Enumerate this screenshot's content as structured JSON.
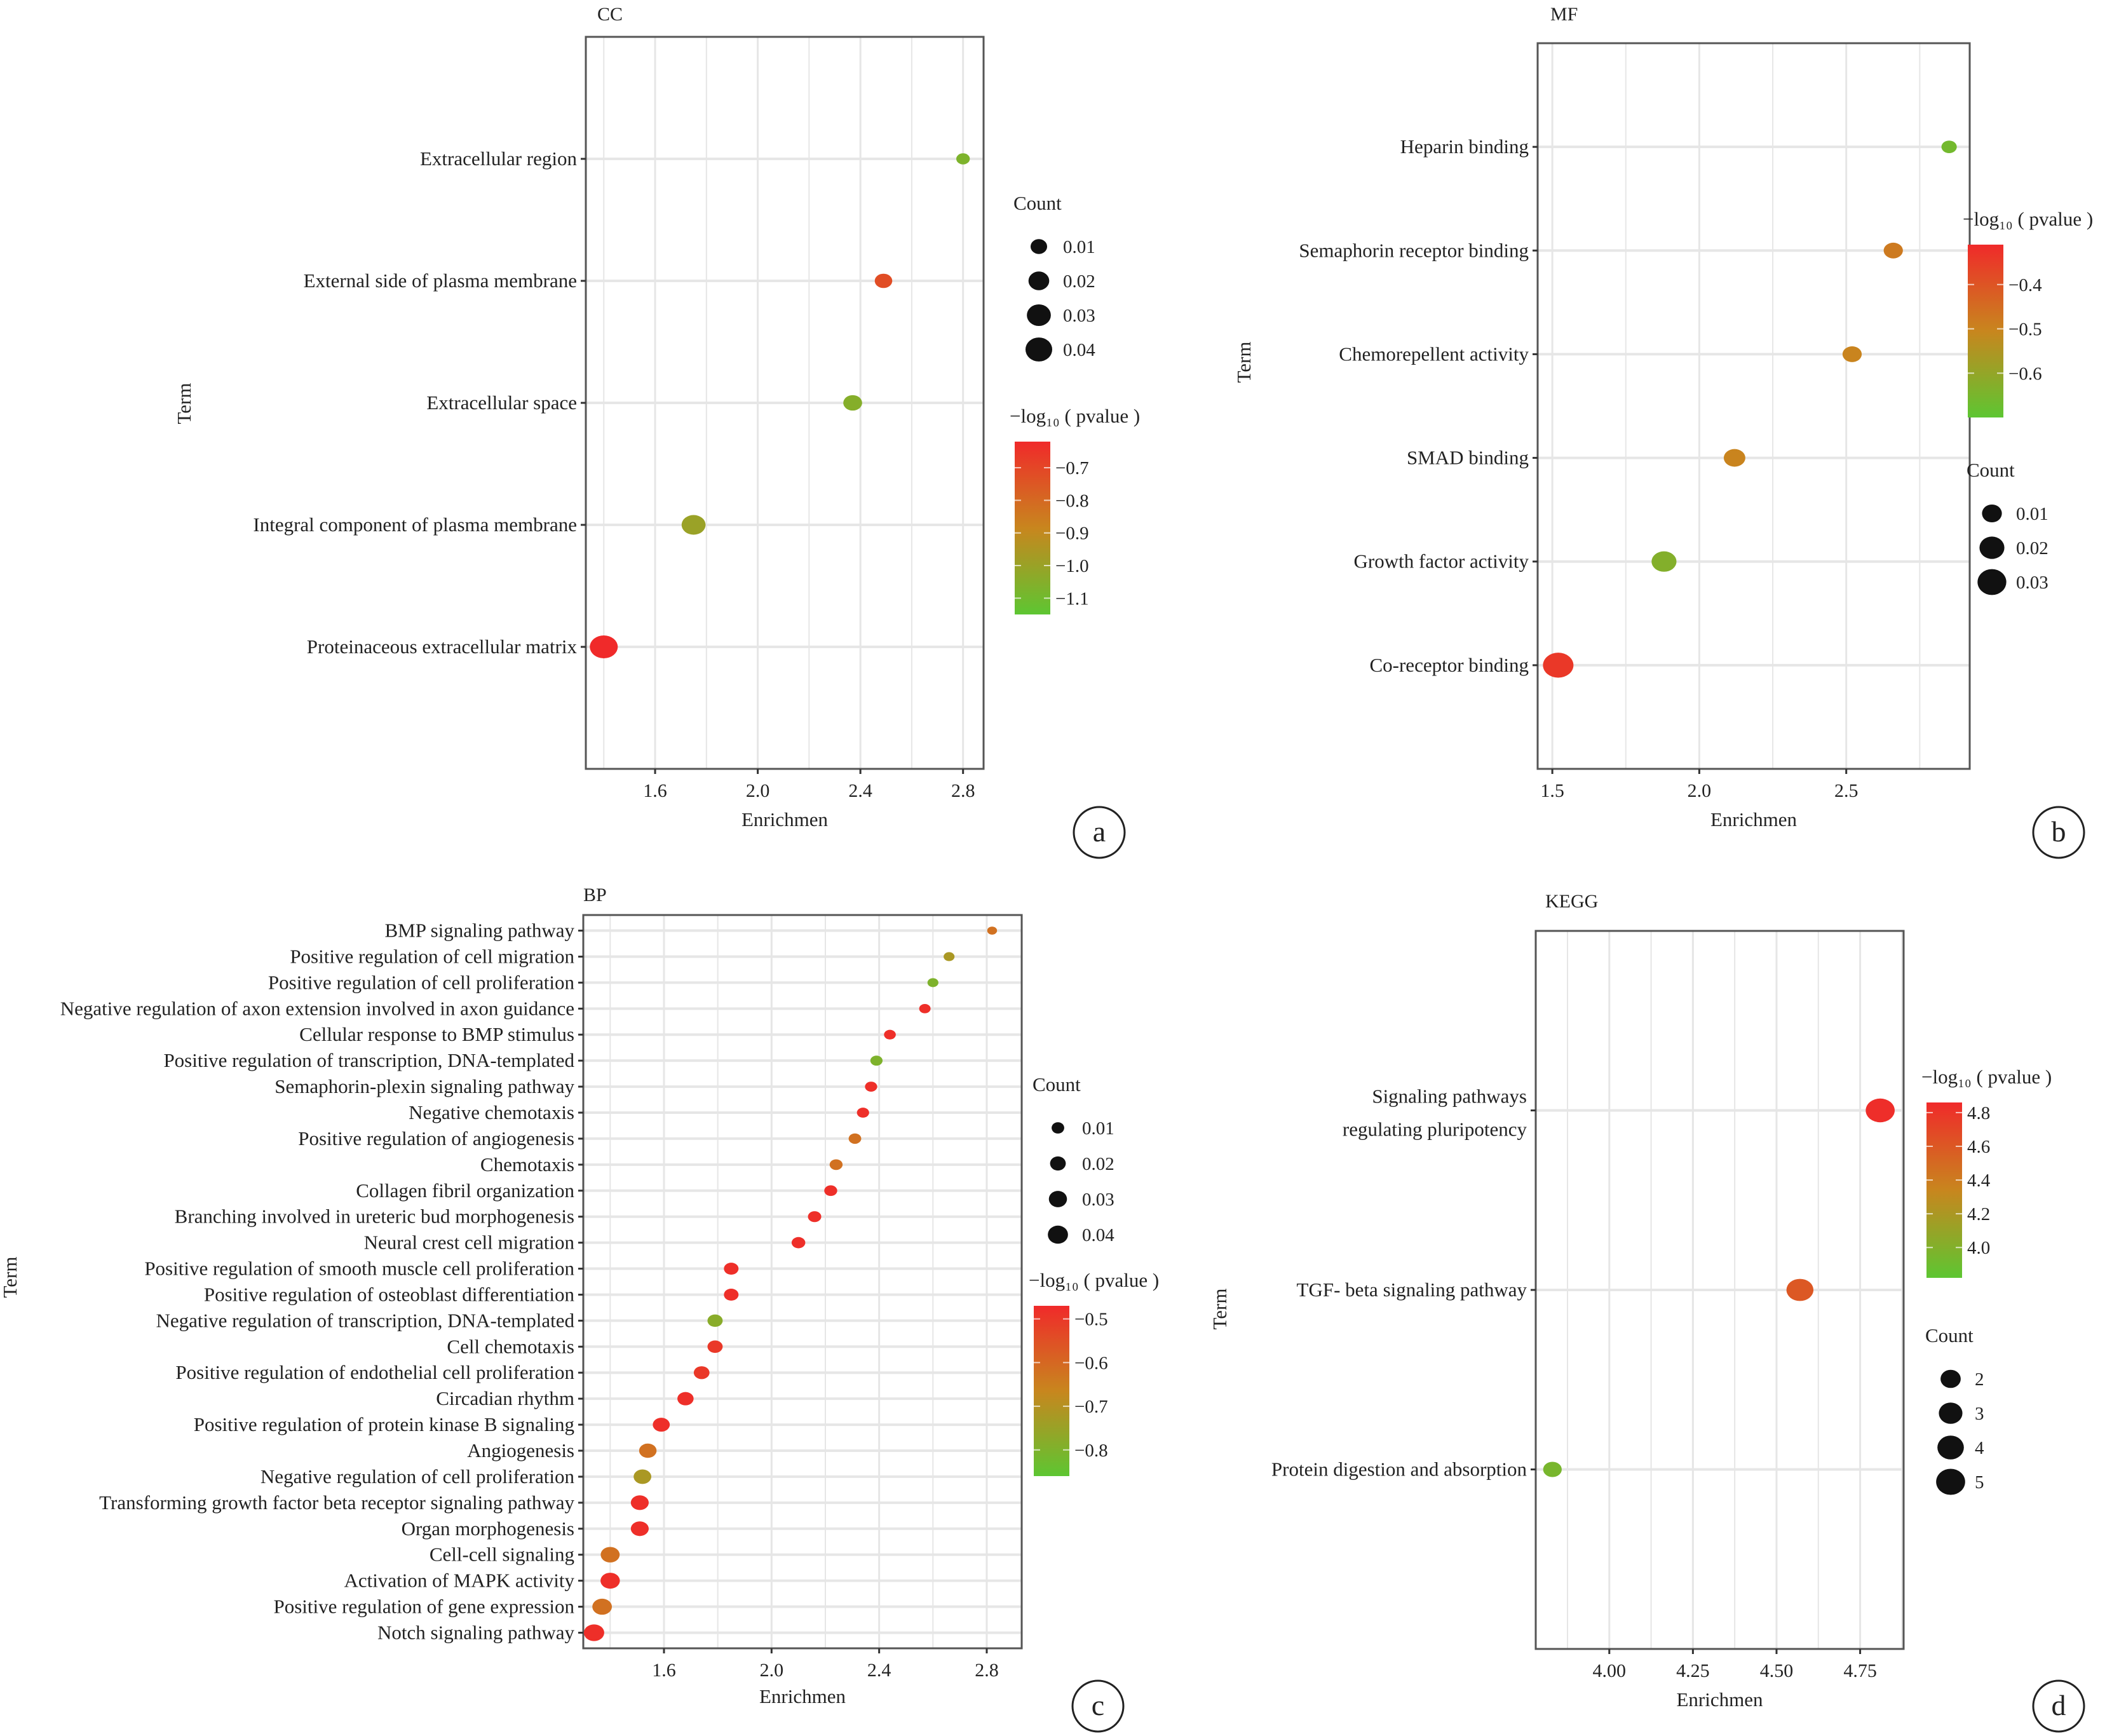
{
  "figure": {
    "panels": [
      "a",
      "b",
      "c",
      "d"
    ]
  },
  "chart_data": [
    {
      "id": "a",
      "type": "scatter",
      "title": "CC",
      "xlabel": "Enrichmen",
      "ylabel": "Term",
      "panel_label": "a",
      "xlim": [
        1.33,
        2.88
      ],
      "xticks": [
        1.6,
        2.0,
        2.4,
        2.8
      ],
      "xtick_labels": [
        "1.6",
        "2.0",
        "2.4",
        "2.8"
      ],
      "grid": true,
      "terms": [
        "Extracellular region",
        "External side of plasma membrane",
        "Extracellular space",
        "Integral component of plasma membrane",
        "Proteinaceous extracellular matrix"
      ],
      "enrichment": [
        2.8,
        2.49,
        2.37,
        1.75,
        1.4
      ],
      "size_value": [
        0.005,
        0.012,
        0.015,
        0.03,
        0.045
      ],
      "color_value": [
        -1.07,
        -0.72,
        -1.05,
        -1.0,
        -0.62
      ],
      "size_legend": {
        "title": "Count",
        "values": [
          0.01,
          0.02,
          0.03,
          0.04
        ],
        "labels": [
          "0.01",
          "0.02",
          "0.03",
          "0.04"
        ],
        "max": 0.045
      },
      "color_legend": {
        "title": "−log₁₀ ( pvalue )",
        "range": [
          -1.15,
          -0.62
        ],
        "ticks": [
          -0.7,
          -0.8,
          -0.9,
          -1.0,
          -1.1
        ],
        "tick_labels": [
          "−0.7",
          "−0.8",
          "−0.9",
          "−1.0",
          "−1.1"
        ],
        "order": "count-first"
      }
    },
    {
      "id": "b",
      "type": "scatter",
      "title": "MF",
      "xlabel": "Enrichmen",
      "ylabel": "Term",
      "panel_label": "b",
      "xlim": [
        1.45,
        2.92
      ],
      "xticks": [
        1.5,
        2.0,
        2.5
      ],
      "xtick_labels": [
        "1.5",
        "2.0",
        "2.5"
      ],
      "grid": true,
      "terms": [
        "Heparin binding",
        "Semaphorin receptor binding",
        "Chemorepellent activity",
        "SMAD binding",
        "Growth factor activity",
        "Co-receptor binding"
      ],
      "enrichment": [
        2.85,
        2.66,
        2.52,
        2.12,
        1.88,
        1.52
      ],
      "size_value": [
        0.004,
        0.009,
        0.009,
        0.013,
        0.02,
        0.035
      ],
      "color_value": [
        -0.66,
        -0.48,
        -0.5,
        -0.5,
        -0.63,
        -0.34
      ],
      "size_legend": {
        "title": "Count",
        "values": [
          0.01,
          0.02,
          0.03
        ],
        "labels": [
          "0.01",
          "0.02",
          "0.03"
        ],
        "max": 0.035
      },
      "color_legend": {
        "title": "−log₁₀ ( pvalue )",
        "range": [
          -0.7,
          -0.31
        ],
        "ticks": [
          -0.4,
          -0.5,
          -0.6
        ],
        "tick_labels": [
          "−0.4",
          "−0.5",
          "−0.6"
        ],
        "order": "color-first"
      }
    },
    {
      "id": "c",
      "type": "scatter",
      "title": "BP",
      "xlabel": "Enrichmen",
      "ylabel": "Term",
      "panel_label": "c",
      "xlim": [
        1.3,
        2.93
      ],
      "xticks": [
        1.6,
        2.0,
        2.4,
        2.8
      ],
      "xtick_labels": [
        "1.6",
        "2.0",
        "2.4",
        "2.8"
      ],
      "grid": true,
      "terms": [
        "BMP signaling pathway",
        "Positive regulation of cell migration",
        "Positive regulation of cell proliferation",
        "Negative regulation of axon extension involved in axon guidance",
        "Cellular response to BMP stimulus",
        "Positive regulation of transcription, DNA-templated",
        "Semaphorin-plexin signaling pathway",
        "Negative chemotaxis",
        "Positive regulation of angiogenesis",
        "Chemotaxis",
        "Collagen fibril organization",
        "Branching involved in ureteric bud morphogenesis",
        "Neural crest cell migration",
        "Positive regulation of smooth muscle cell proliferation",
        "Positive regulation of osteoblast differentiation",
        "Negative regulation of transcription, DNA-templated",
        "Cell chemotaxis",
        "Positive regulation of endothelial cell proliferation",
        "Circadian rhythm",
        "Positive regulation of protein kinase B signaling",
        "Angiogenesis",
        "Negative regulation of cell proliferation",
        "Transforming growth factor beta receptor signaling pathway",
        "Organ morphogenesis",
        "Cell-cell signaling",
        "Activation of MAPK activity",
        "Positive regulation of gene expression",
        "Notch signaling pathway"
      ],
      "enrichment": [
        2.82,
        2.66,
        2.6,
        2.57,
        2.44,
        2.39,
        2.37,
        2.34,
        2.31,
        2.24,
        2.22,
        2.16,
        2.1,
        1.85,
        1.85,
        1.79,
        1.79,
        1.74,
        1.68,
        1.59,
        1.54,
        1.52,
        1.51,
        1.51,
        1.4,
        1.4,
        1.37,
        1.34
      ],
      "size_value": [
        0.004,
        0.006,
        0.006,
        0.007,
        0.008,
        0.009,
        0.009,
        0.009,
        0.01,
        0.011,
        0.011,
        0.012,
        0.013,
        0.016,
        0.016,
        0.018,
        0.018,
        0.02,
        0.022,
        0.025,
        0.027,
        0.028,
        0.029,
        0.029,
        0.034,
        0.036,
        0.037,
        0.041
      ],
      "color_value": [
        -0.62,
        -0.72,
        -0.8,
        -0.48,
        -0.48,
        -0.8,
        -0.48,
        -0.48,
        -0.62,
        -0.62,
        -0.48,
        -0.48,
        -0.48,
        -0.48,
        -0.48,
        -0.78,
        -0.5,
        -0.5,
        -0.48,
        -0.48,
        -0.62,
        -0.72,
        -0.48,
        -0.48,
        -0.62,
        -0.48,
        -0.62,
        -0.48
      ],
      "size_legend": {
        "title": "Count",
        "values": [
          0.01,
          0.02,
          0.03,
          0.04
        ],
        "labels": [
          "0.01",
          "0.02",
          "0.03",
          "0.04"
        ],
        "max": 0.041
      },
      "color_legend": {
        "title": "−log₁₀ ( pvalue )",
        "range": [
          -0.86,
          -0.47
        ],
        "ticks": [
          -0.5,
          -0.6,
          -0.7,
          -0.8
        ],
        "tick_labels": [
          "−0.5",
          "−0.6",
          "−0.7",
          "−0.8"
        ],
        "order": "count-first"
      }
    },
    {
      "id": "d",
      "type": "scatter",
      "title": "KEGG",
      "xlabel": "Enrichmen",
      "ylabel": "Term",
      "panel_label": "d",
      "xlim": [
        3.78,
        4.88
      ],
      "xticks": [
        4.0,
        4.25,
        4.5,
        4.75
      ],
      "xtick_labels": [
        "4.00",
        "4.25",
        "4.50",
        "4.75"
      ],
      "grid": true,
      "terms": [
        "Signaling pathways|regulating pluripotency",
        "TGF- beta signaling pathway",
        "Protein digestion and absorption"
      ],
      "enrichment": [
        4.81,
        4.57,
        3.83
      ],
      "size_value": [
        5,
        4.2,
        1.6
      ],
      "color_value": [
        4.84,
        4.6,
        3.95
      ],
      "size_legend": {
        "title": "Count",
        "values": [
          2,
          3,
          4,
          5
        ],
        "labels": [
          "2",
          "3",
          "4",
          "5"
        ],
        "max": 5.1
      },
      "color_legend": {
        "title": "−log₁₀ ( pvalue )",
        "range": [
          3.82,
          4.86
        ],
        "ticks": [
          4.8,
          4.6,
          4.4,
          4.2,
          4.0
        ],
        "tick_labels": [
          "4.8",
          "4.6",
          "4.4",
          "4.2",
          "4.0"
        ],
        "order": "color-first"
      }
    }
  ],
  "colors": {
    "high": "#f02a2a",
    "mid": "#c8861e",
    "low": "#5dc632",
    "grid": "#e6e6e6",
    "frame": "#555555",
    "dot_legend": "#111111"
  }
}
